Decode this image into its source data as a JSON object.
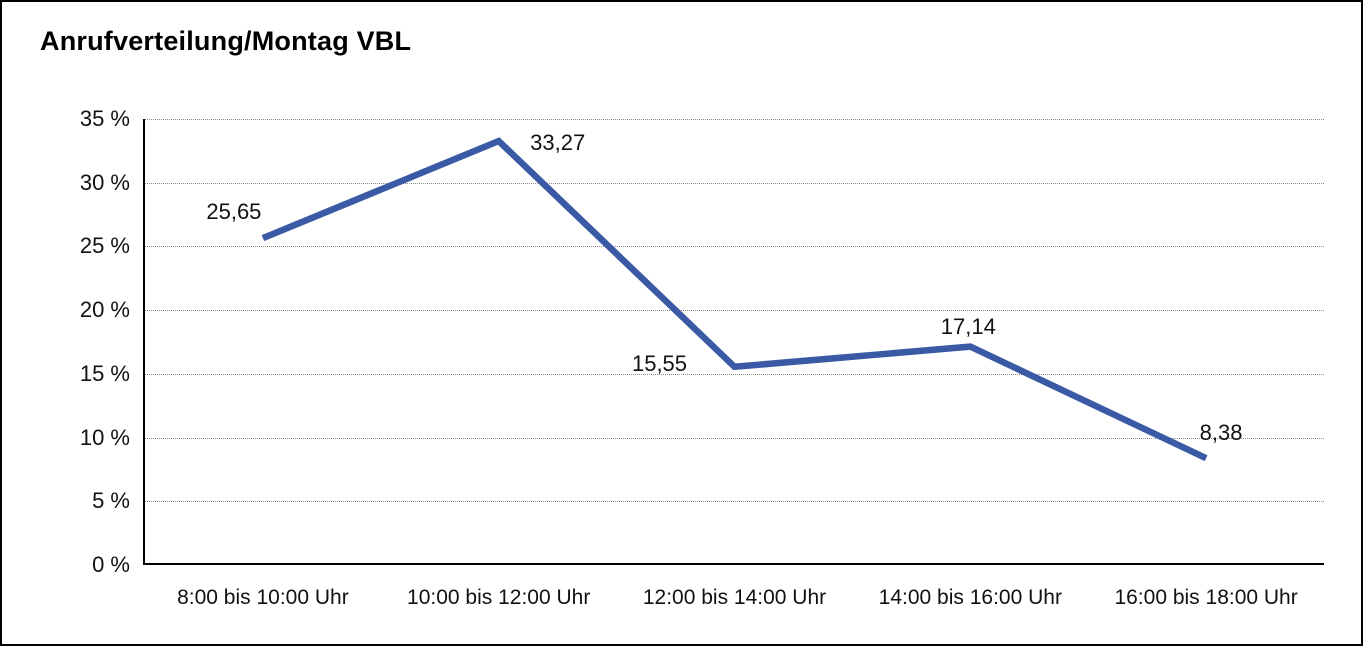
{
  "chart_data": {
    "type": "line",
    "title": "Anrufverteilung/Montag VBL",
    "categories": [
      "8:00 bis 10:00 Uhr",
      "10:00 bis 12:00 Uhr",
      "12:00 bis 14:00 Uhr",
      "14:00 bis 16:00 Uhr",
      "16:00 bis 18:00 Uhr"
    ],
    "values": [
      25.65,
      33.27,
      15.55,
      17.14,
      8.38
    ],
    "value_labels": [
      "25,65",
      "33,27",
      "15,55",
      "17,14",
      "8,38"
    ],
    "xlabel": "",
    "ylabel": "",
    "ylim": [
      0,
      35
    ],
    "yticks": [
      0,
      5,
      10,
      15,
      20,
      25,
      30,
      35
    ],
    "ytick_labels": [
      "0 %",
      "5 %",
      "10 %",
      "15 %",
      "20 %",
      "25 %",
      "30 %",
      "35 %"
    ],
    "grid": "horizontal-dotted",
    "legend": "none",
    "line_color": "#3B5AA5",
    "text_color": "#111111",
    "axis_color": "#000000",
    "grid_color": "#8a8a8a",
    "background": "#ffffff"
  }
}
